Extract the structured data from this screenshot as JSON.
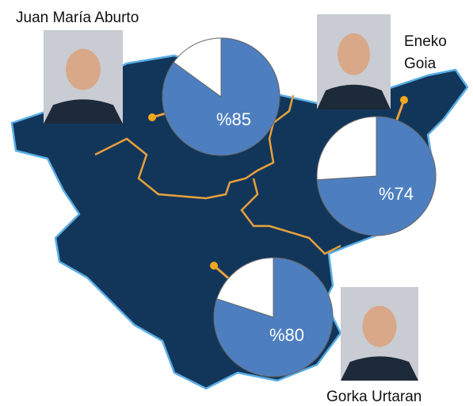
{
  "panels": [
    {
      "name_lines": [
        "Juan María Aburto"
      ],
      "value": 85,
      "value_label": "%85"
    },
    {
      "name_lines": [
        "Eneko",
        "Goia"
      ],
      "value": 74,
      "value_label": "%74"
    },
    {
      "name_lines": [
        "Gorka Urtaran"
      ],
      "value": 80,
      "value_label": "%80"
    }
  ]
}
